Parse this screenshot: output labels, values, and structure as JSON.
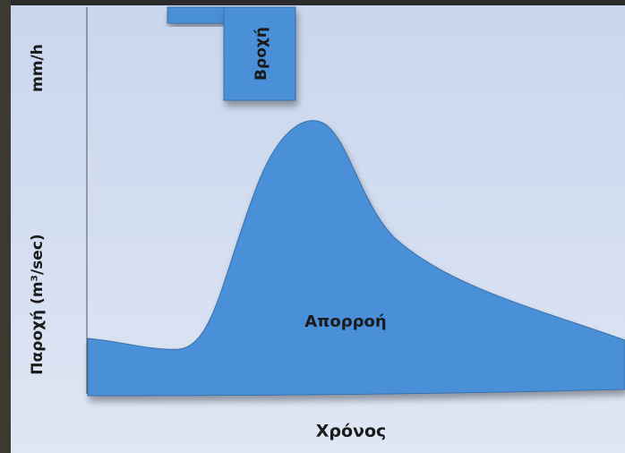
{
  "rain_axis_label": "mm/h",
  "rain_label": "Βροχή",
  "flow_axis_label": "Παροχή (m³/sec)",
  "runoff_label": "Απορροή",
  "time_axis_label": "Χρόνος"
}
